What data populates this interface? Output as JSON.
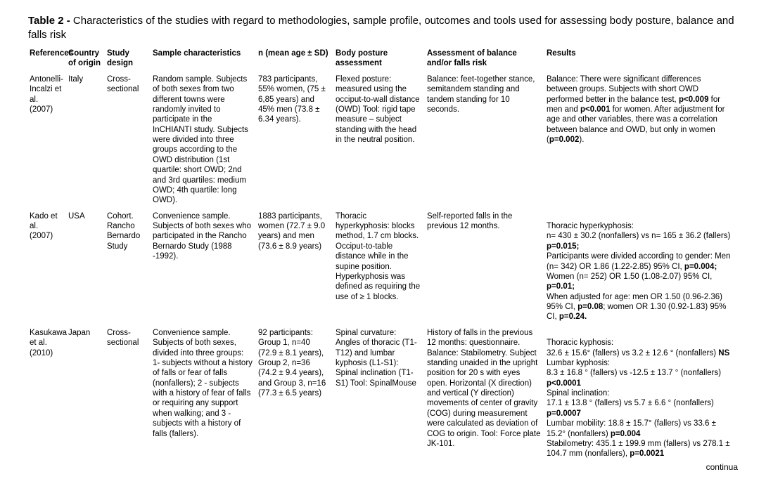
{
  "table": {
    "title_bold": "Table 2 - ",
    "title_rest": "Characteristics of the studies with regard to methodologies, sample profile, outcomes and tools used for assessing body posture, balance and falls risk",
    "headers": {
      "c1": "References",
      "c2": "Country of origin",
      "c3": "Study design",
      "c4": "Sample characteristics",
      "c5": "n (mean age ± SD)",
      "c6": "Body posture assessment",
      "c7": "Assessment of balance and/or falls risk",
      "c8": "Results"
    },
    "footer": "continua",
    "rows": [
      {
        "ref": "Antonelli-Incalzi et al. (2007)",
        "country": "Italy",
        "design": "Cross-sectional",
        "sample": "Random sample. Subjects of both sexes from two different towns were randomly invited to participate in the InCHIANTI study. Subjects were divided into three groups according to the OWD distribution (1st quartile: short OWD; 2nd and 3rd quartiles: medium OWD; 4th quartile: long OWD).",
        "n": "783 participants, 55% women, (75 ± 6,85 years) and 45% men (73.8 ± 6.34 years).",
        "posture": "Flexed posture: measured using the occiput-to-wall distance (OWD) Tool: rigid tape measure – subject standing with the head in the neutral position.",
        "assessment": "Balance: feet-together stance, semitandem standing and tandem standing for 10 seconds.",
        "results_pre": "Balance: There were significant differences between groups. Subjects with short OWD performed better in the balance test, ",
        "results_b1": "p<0.009",
        "results_mid1": " for men and ",
        "results_b2": "p<0.001",
        "results_mid2": " for women. After adjustment for age and other variables, there was a correlation between balance and OWD, but only in women (",
        "results_b3": "p=0.002",
        "results_post": ")."
      },
      {
        "ref": "Kado et al. (2007)",
        "country": "USA",
        "design": "Cohort. Rancho Bernardo Study",
        "sample": "Convenience sample. Subjects of both sexes who participated in the Rancho Bernardo Study (1988 -1992).",
        "n": "1883 participants, women (72.7 ± 9.0 years) and men (73.6 ± 8.9 years)",
        "posture": "Thoracic hyperkyphosis: blocks method, 1.7 cm blocks. Occiput-to-table distance while in the supine position. Hyperkyphosis was defined as requiring the use of ≥ 1 blocks.",
        "assessment": "Self-reported falls in the previous 12 months.",
        "r2_a": "Thoracic hyperkyphosis:\nn= 430 ± 30.2 (nonfallers) vs n= 165 ± 36.2 (fallers) ",
        "r2_b1": "p=0.015;",
        "r2_c": "\nParticipants were divided according to gender: Men (n= 342) OR 1.86 (1.22-2.85) 95% CI, ",
        "r2_b2": "p=0.004;",
        "r2_d": " Women (n= 252) OR 1.50 (1.08-2.07) 95% CI, ",
        "r2_b3": "p=0.01;",
        "r2_e": "\nWhen adjusted for age: men OR 1.50 (0.96-2.36) 95% CI, ",
        "r2_b4": "p=0.08",
        "r2_f": "; women OR 1.30 (0.92-1.83) 95% CI, ",
        "r2_b5": "p=0.24."
      },
      {
        "ref": "Kasukawa et al.(2010)",
        "country": "Japan",
        "design": "Cross-sectional",
        "sample": "Convenience sample. Subjects of both sexes, divided into three groups: 1- subjects without a history of falls or fear of falls (nonfallers); 2 - subjects with a history of fear of falls or requiring any support when walking; and 3 -  subjects with a history of falls (fallers).",
        "n": "92 participants: Group 1, n=40 (72.9 ± 8.1 years),  Group 2, n=36 (74.2 ± 9.4 years), and Group 3, n=16 (77.3 ± 6.5 years)",
        "posture": "Spinal curvature: Angles of thoracic (T1-T12) and lumbar kyphosis (L1-S1): Spinal inclination (T1-S1) Tool: SpinalMouse",
        "assessment": "History of falls in the previous 12 months: questionnaire. Balance: Stabilometry. Subject standing unaided in the upright position for 20 s with eyes open.  Horizontal (X direction) and vertical (Y direction) movements of center of gravity (COG) during measurement were calculated as deviation of COG to origin. Tool: Force plate JK-101.",
        "r3_a": "Thoracic kyphosis:\n32.6 ± 15.6° (fallers) vs 3.2 ± 12.6 ° (nonfallers) ",
        "r3_b1": "NS",
        "r3_c": "\nLumbar kyphosis:\n8.3 ± 16.8 ° (fallers) vs -12.5 ± 13.7 ° (nonfallers) ",
        "r3_b2": "p<0.0001",
        "r3_d": "\nSpinal inclination:\n17.1 ± 13.8 ° (fallers) vs 5.7 ± 6.6 ° (nonfallers) ",
        "r3_b3": "p=0.0007",
        "r3_e": "\nLumbar mobility: 18.8 ± 15.7° (fallers) vs 33.6 ± 15.2° (nonfallers) ",
        "r3_b4": "p=0.004",
        "r3_f": "\nStabilometry: 435.1 ± 199.9 mm (fallers) vs 278.1 ± 104.7 mm (nonfallers), ",
        "r3_b5": "p=0.0021"
      }
    ]
  }
}
